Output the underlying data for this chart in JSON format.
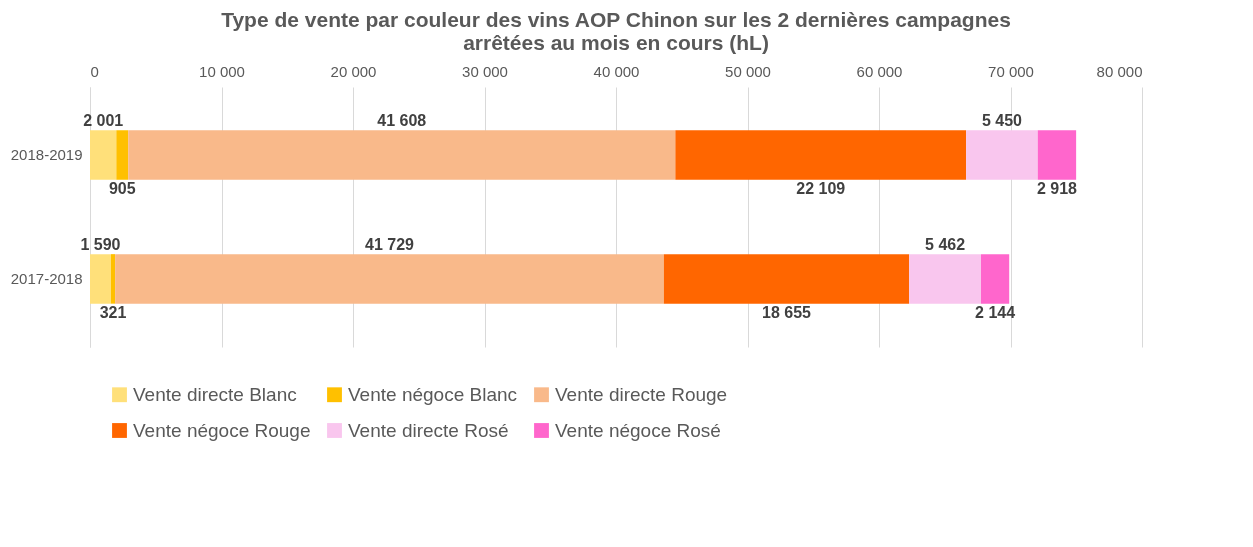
{
  "chart_data": {
    "type": "bar",
    "orientation": "horizontal",
    "stacked": true,
    "title": "Type de vente par couleur des vins AOP Chinon sur les 2 dernières campagnes arrêtées au mois en cours (hL)",
    "categories": [
      "2018-2019",
      "2017-2018"
    ],
    "series": [
      {
        "name": "Vente directe Blanc",
        "color": "#ffe07a",
        "values": [
          2001,
          1590
        ],
        "value_labels": [
          "2 001",
          "1 590"
        ]
      },
      {
        "name": "Vente négoce Blanc",
        "color": "#ffc000",
        "values": [
          905,
          321
        ],
        "value_labels": [
          "905",
          "321"
        ]
      },
      {
        "name": "Vente directe Rouge",
        "color": "#f9b98a",
        "values": [
          41608,
          41729
        ],
        "value_labels": [
          "41 608",
          "41 729"
        ]
      },
      {
        "name": "Vente négoce Rouge",
        "color": "#ff6600",
        "values": [
          22109,
          18655
        ],
        "value_labels": [
          "22 109",
          "18 655"
        ]
      },
      {
        "name": "Vente directe Rosé",
        "color": "#f9c6ee",
        "values": [
          5450,
          5462
        ],
        "value_labels": [
          "5 450",
          "5 462"
        ]
      },
      {
        "name": "Vente négoce Rosé",
        "color": "#ff66cc",
        "values": [
          2918,
          2144
        ],
        "value_labels": [
          "2 918",
          "2 144"
        ]
      }
    ],
    "xlim": [
      0,
      80000
    ],
    "xticks": [
      0,
      {
        "value": 10000,
        "label": "10 000"
      },
      {
        "value": 20000,
        "label": "20 000"
      },
      {
        "value": 30000,
        "label": "30 000"
      },
      {
        "value": 40000,
        "label": "40 000"
      },
      {
        "value": 50000,
        "label": "50 000"
      },
      {
        "value": 60000,
        "label": "60 000"
      },
      {
        "value": 70000,
        "label": "70 000"
      },
      {
        "value": 80000,
        "label": "80 000"
      }
    ],
    "grid": "x",
    "legend": "bottom"
  }
}
